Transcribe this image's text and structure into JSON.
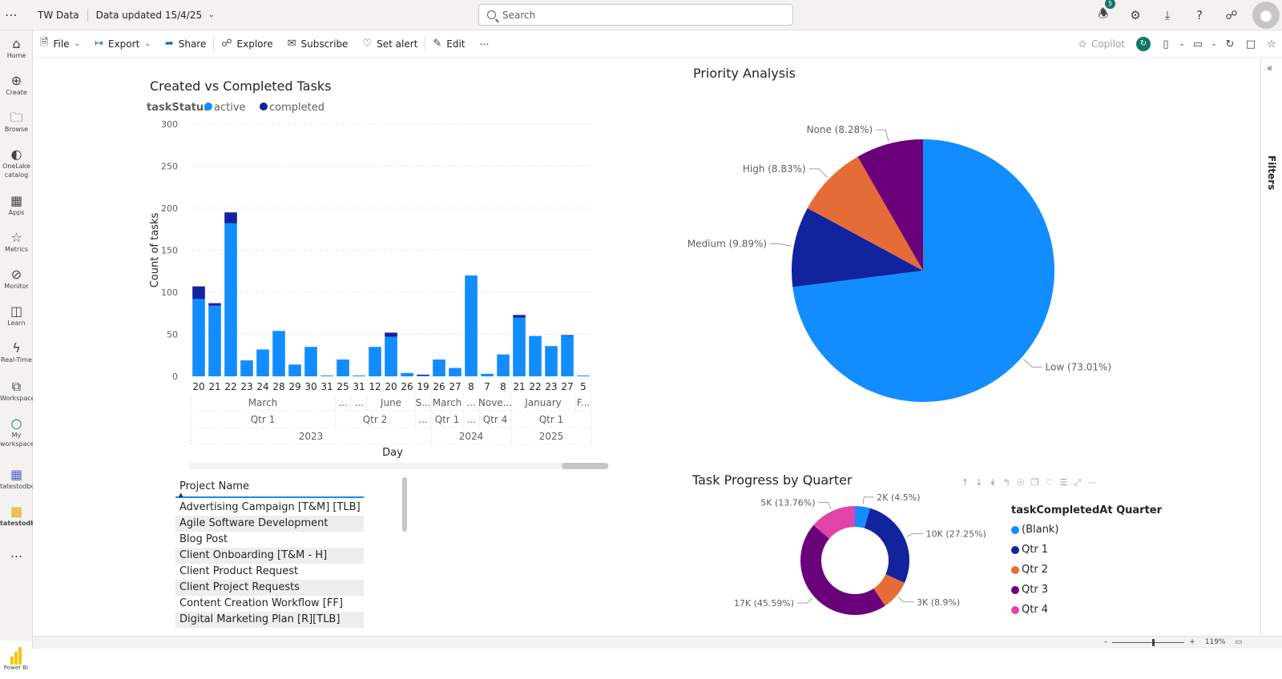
{
  "topbar": {
    "app_title": "TW Data",
    "data_updated": "Data updated 15/4/25",
    "search_placeholder": "Search",
    "notification_count": "5"
  },
  "leftnav": {
    "items": [
      {
        "label": "Home",
        "icon": "home-icon"
      },
      {
        "label": "Create",
        "icon": "plus-circle-icon"
      },
      {
        "label": "Browse",
        "icon": "folder-icon"
      },
      {
        "label": "OneLake catalog",
        "icon": "onelake-icon"
      },
      {
        "label": "Apps",
        "icon": "apps-icon"
      },
      {
        "label": "Metrics",
        "icon": "trophy-icon"
      },
      {
        "label": "Monitor",
        "icon": "monitor-icon"
      },
      {
        "label": "Learn",
        "icon": "book-icon"
      },
      {
        "label": "Real-Time",
        "icon": "lightning-icon"
      },
      {
        "label": "Workspaces",
        "icon": "workspaces-icon"
      },
      {
        "label": "My workspace",
        "icon": "person-icon"
      },
      {
        "label": "tatestodbc",
        "icon": "dataset-icon"
      },
      {
        "label": "tatestodbc",
        "icon": "report-icon"
      }
    ],
    "more": "...",
    "product": "Power BI"
  },
  "toolbar": {
    "file": "File",
    "export": "Export",
    "share": "Share",
    "explore": "Explore",
    "subscribe": "Subscribe",
    "set_alert": "Set alert",
    "edit": "Edit",
    "more": "⋯",
    "copilot": "Copilot"
  },
  "filters_pane": {
    "label": "Filters"
  },
  "status": {
    "zoom": "119%"
  },
  "visuals": {
    "bar_title": "Created vs Completed Tasks",
    "pie_title": "Priority Analysis",
    "donut_title": "Task Progress by Quarter"
  },
  "table": {
    "header": "Project Name",
    "rows": [
      "Advertising Campaign [T&M] [TLB]",
      "Agile Software Development",
      "Blog Post",
      "Client Onboarding [T&M - H]",
      "Client Product Request",
      "Client Project Requests",
      "Content Creation Workflow [FF]",
      "Digital Marketing Plan [R][TLB]"
    ]
  },
  "chart_data": [
    {
      "type": "bar",
      "title": "Created vs Completed Tasks",
      "xlabel": "Day",
      "ylabel": "Count of tasks",
      "ylim": [
        0,
        300
      ],
      "yticks": [
        0,
        50,
        100,
        150,
        200,
        250,
        300
      ],
      "legend_title": "taskStatus",
      "legend_position": "top-left",
      "stacked": true,
      "categories": [
        "20",
        "21",
        "22",
        "23",
        "24",
        "28",
        "29",
        "30",
        "31",
        "25",
        "31",
        "12",
        "20",
        "26",
        "19",
        "26",
        "27",
        "8",
        "7",
        "8",
        "21",
        "22",
        "23",
        "27",
        "5"
      ],
      "series": [
        {
          "name": "active",
          "color": "#118dff",
          "values": [
            92,
            84,
            182,
            19,
            32,
            54,
            14,
            35,
            1,
            20,
            1,
            35,
            47,
            4,
            1,
            20,
            10,
            120,
            3,
            26,
            70,
            48,
            36,
            48,
            1
          ]
        },
        {
          "name": "completed",
          "color": "#12239e",
          "values": [
            15,
            3,
            13,
            0,
            0,
            0,
            0,
            0,
            0,
            0,
            0,
            0,
            5,
            0,
            1,
            0,
            0,
            0,
            0,
            0,
            3,
            0,
            0,
            1,
            0
          ]
        }
      ],
      "hierarchy": {
        "months": [
          {
            "label": "March",
            "span": [
              0,
              8
            ]
          },
          {
            "label": "...",
            "span": [
              9,
              9
            ]
          },
          {
            "label": "...",
            "span": [
              10,
              10
            ]
          },
          {
            "label": "June",
            "span": [
              11,
              13
            ]
          },
          {
            "label": "S...",
            "span": [
              14,
              14
            ]
          },
          {
            "label": "March",
            "span": [
              15,
              16
            ]
          },
          {
            "label": "...",
            "span": [
              17,
              17
            ]
          },
          {
            "label": "Nove...",
            "span": [
              18,
              19
            ]
          },
          {
            "label": "January",
            "span": [
              20,
              23
            ]
          },
          {
            "label": "F...",
            "span": [
              24,
              24
            ]
          }
        ],
        "quarters": [
          {
            "label": "Qtr 1",
            "span": [
              0,
              8
            ]
          },
          {
            "label": "Qtr 2",
            "span": [
              9,
              13
            ]
          },
          {
            "label": "...",
            "span": [
              14,
              14
            ]
          },
          {
            "label": "Qtr 1",
            "span": [
              15,
              16
            ]
          },
          {
            "label": "...",
            "span": [
              17,
              17
            ]
          },
          {
            "label": "Qtr 4",
            "span": [
              18,
              19
            ]
          },
          {
            "label": "Qtr 1",
            "span": [
              20,
              24
            ]
          }
        ],
        "years": [
          {
            "label": "2023",
            "span": [
              0,
              14
            ]
          },
          {
            "label": "2024",
            "span": [
              15,
              19
            ]
          },
          {
            "label": "2025",
            "span": [
              20,
              24
            ]
          }
        ]
      }
    },
    {
      "type": "pie",
      "title": "Priority Analysis",
      "slices": [
        {
          "label": "Low",
          "value": 73.01,
          "display": "Low (73.01%)",
          "color": "#118dff"
        },
        {
          "label": "Medium",
          "value": 9.89,
          "display": "Medium (9.89%)",
          "color": "#12239e"
        },
        {
          "label": "High",
          "value": 8.83,
          "display": "High (8.83%)",
          "color": "#e66c37"
        },
        {
          "label": "None",
          "value": 8.28,
          "display": "None (8.28%)",
          "color": "#6b007b"
        }
      ]
    },
    {
      "type": "pie",
      "title": "Task Progress by Quarter",
      "donut": true,
      "legend_title": "taskCompletedAt Quarter",
      "legend_position": "right",
      "slices": [
        {
          "label": "(Blank)",
          "value": 4.5,
          "display": "2K (4.5%)",
          "color": "#118dff"
        },
        {
          "label": "Qtr 1",
          "value": 27.25,
          "display": "10K (27.25%)",
          "color": "#12239e"
        },
        {
          "label": "Qtr 2",
          "value": 8.9,
          "display": "3K (8.9%)",
          "color": "#e66c37"
        },
        {
          "label": "Qtr 3",
          "value": 45.59,
          "display": "17K (45.59%)",
          "color": "#6b007b"
        },
        {
          "label": "Qtr 4",
          "value": 13.76,
          "display": "5K (13.76%)",
          "color": "#e044a7"
        }
      ]
    }
  ]
}
